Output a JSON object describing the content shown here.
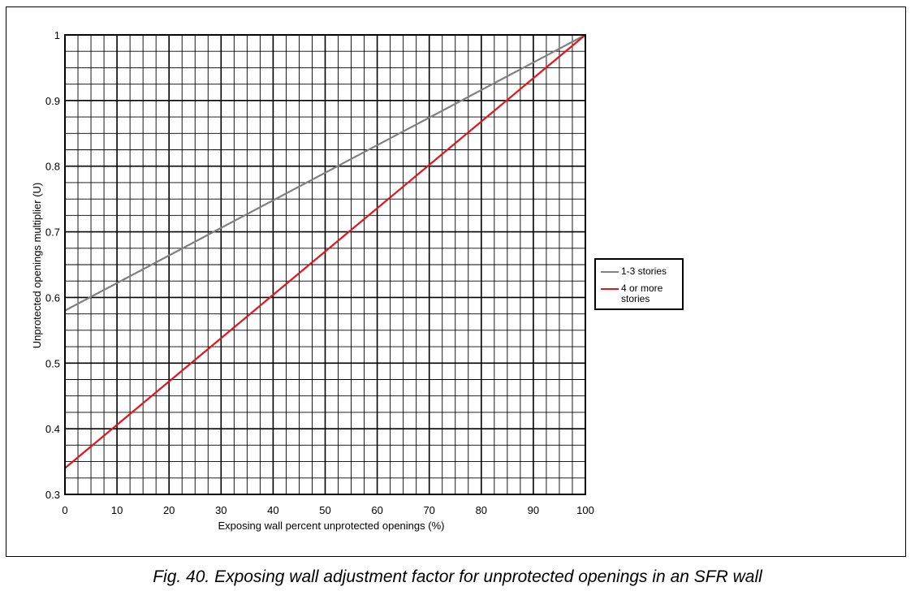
{
  "chart_data": {
    "type": "line",
    "xlabel": "Exposing wall percent unprotected openings (%)",
    "ylabel": "Unprotected openings multiplier (U)",
    "xlim": [
      0,
      100
    ],
    "ylim": [
      0.3,
      1
    ],
    "x_ticks": [
      "0",
      "10",
      "20",
      "30",
      "40",
      "50",
      "60",
      "70",
      "80",
      "90",
      "100"
    ],
    "y_ticks": [
      "0.3",
      "0.4",
      "0.5",
      "0.6",
      "0.7",
      "0.8",
      "0.9",
      "1"
    ],
    "grid": true,
    "major_x_step": 10,
    "major_y_step": 0.1,
    "minor_divisions": 4,
    "legend_position": "right",
    "series": [
      {
        "name": "1-3 stories",
        "color": "#808080",
        "x": [
          0,
          100
        ],
        "y": [
          0.58,
          1.0
        ]
      },
      {
        "name": "4 or more stories",
        "color": "#e3141b",
        "x": [
          0,
          100
        ],
        "y": [
          0.34,
          1.0
        ]
      }
    ]
  },
  "caption": "Fig. 40. Exposing wall adjustment factor for unprotected openings in an SFR wall"
}
